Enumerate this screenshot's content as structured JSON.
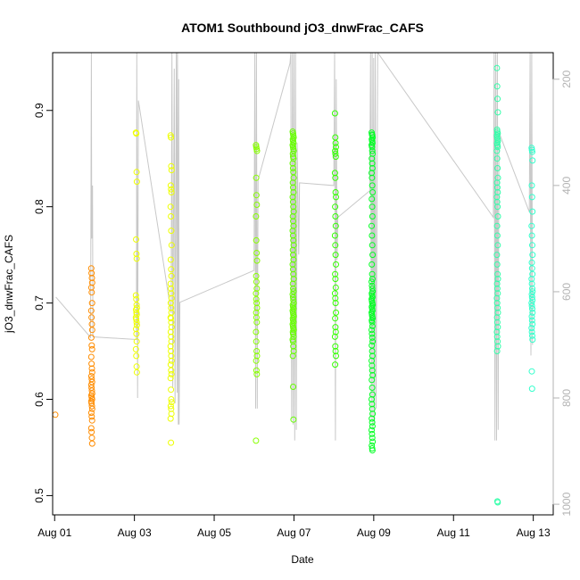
{
  "chart_data": {
    "type": "scatter",
    "title": "ATOM1 Southbound jO3_dnwFrac_CAFS",
    "xlabel": "Date",
    "ylabel": "jO3_dnwFrac_CAFS",
    "x_ticks": [
      "Aug 01",
      "Aug 03",
      "Aug 05",
      "Aug 07",
      "Aug 09",
      "Aug 11",
      "Aug 13"
    ],
    "x_tick_days": [
      1,
      3,
      5,
      7,
      9,
      11,
      13
    ],
    "xlim": [
      0.95,
      13.5
    ],
    "y_ticks": [
      "0.5",
      "0.6",
      "0.7",
      "0.8",
      "0.9"
    ],
    "y_tick_values": [
      0.5,
      0.6,
      0.7,
      0.8,
      0.9
    ],
    "ylim": [
      0.48,
      0.96
    ],
    "right_axis": {
      "ticks": [
        "200",
        "400",
        "600",
        "800",
        "1000"
      ],
      "tick_values": [
        200,
        400,
        600,
        800,
        1000
      ],
      "range": [
        150,
        1020
      ],
      "color": "#b3b3b3"
    },
    "grid": false,
    "colors": {
      "altitude_trace": "#c8c8c8",
      "points_start": "#ff8c00",
      "points_end": "#33ffcc"
    },
    "groups": [
      {
        "x": 1.03,
        "color": "#ff8c00",
        "y": [
          0.584
        ]
      },
      {
        "x": 1.93,
        "color": "#ff8c00",
        "y": [
          0.736,
          0.731,
          0.726,
          0.721,
          0.716,
          0.711,
          0.7,
          0.692,
          0.685,
          0.678,
          0.672,
          0.664,
          0.656,
          0.652,
          0.644,
          0.637,
          0.632,
          0.628,
          0.624,
          0.621,
          0.618,
          0.615,
          0.612,
          0.609,
          0.606,
          0.604,
          0.602,
          0.6,
          0.598,
          0.596,
          0.593,
          0.59,
          0.586,
          0.582,
          0.578,
          0.57,
          0.566,
          0.56,
          0.554
        ]
      },
      {
        "x": 3.05,
        "color": "#eeff00",
        "y": [
          0.877,
          0.876,
          0.836,
          0.826,
          0.766,
          0.751,
          0.746,
          0.708,
          0.704,
          0.698,
          0.695,
          0.693,
          0.69,
          0.688,
          0.685,
          0.683,
          0.68,
          0.677,
          0.673,
          0.668,
          0.66,
          0.652,
          0.645,
          0.634,
          0.628
        ]
      },
      {
        "x": 3.92,
        "color": "#eeff00",
        "y": [
          0.874,
          0.872,
          0.842,
          0.838,
          0.822,
          0.818,
          0.815,
          0.8,
          0.79,
          0.775,
          0.76,
          0.745,
          0.735,
          0.728,
          0.72,
          0.715,
          0.71,
          0.705,
          0.7,
          0.695,
          0.69,
          0.685,
          0.684,
          0.68,
          0.675,
          0.67,
          0.665,
          0.66,
          0.655,
          0.65,
          0.645,
          0.64,
          0.636,
          0.63,
          0.626,
          0.622,
          0.61,
          0.6,
          0.597,
          0.593,
          0.59,
          0.585,
          0.58,
          0.555
        ]
      },
      {
        "x": 6.06,
        "color": "#88ff00",
        "y": [
          0.864,
          0.862,
          0.86,
          0.858,
          0.83,
          0.812,
          0.802,
          0.79,
          0.765,
          0.752,
          0.744,
          0.728,
          0.722,
          0.715,
          0.71,
          0.704,
          0.7,
          0.695,
          0.69,
          0.685,
          0.68,
          0.67,
          0.66,
          0.65,
          0.645,
          0.64,
          0.63,
          0.626,
          0.557
        ]
      },
      {
        "x": 6.98,
        "color": "#66ff00",
        "y": [
          0.878,
          0.876,
          0.874,
          0.872,
          0.87,
          0.868,
          0.866,
          0.864,
          0.862,
          0.86,
          0.858,
          0.855,
          0.852,
          0.85,
          0.845,
          0.84,
          0.836,
          0.83,
          0.825,
          0.82,
          0.815,
          0.81,
          0.805,
          0.8,
          0.795,
          0.79,
          0.785,
          0.78,
          0.775,
          0.77,
          0.765,
          0.76,
          0.755,
          0.75,
          0.745,
          0.74,
          0.735,
          0.73,
          0.725,
          0.72,
          0.715,
          0.712,
          0.709,
          0.706,
          0.703,
          0.7,
          0.698,
          0.696,
          0.694,
          0.692,
          0.69,
          0.688,
          0.686,
          0.684,
          0.682,
          0.68,
          0.678,
          0.676,
          0.674,
          0.672,
          0.67,
          0.668,
          0.665,
          0.662,
          0.66,
          0.655,
          0.65,
          0.645,
          0.613,
          0.579
        ]
      },
      {
        "x": 8.04,
        "color": "#33ff00",
        "y": [
          0.897,
          0.872,
          0.866,
          0.862,
          0.858,
          0.855,
          0.852,
          0.835,
          0.83,
          0.815,
          0.81,
          0.8,
          0.79,
          0.78,
          0.77,
          0.76,
          0.75,
          0.74,
          0.73,
          0.725,
          0.716,
          0.71,
          0.705,
          0.7,
          0.69,
          0.684,
          0.675,
          0.67,
          0.665,
          0.655,
          0.65,
          0.645,
          0.636
        ]
      },
      {
        "x": 8.96,
        "color": "#00ff22",
        "y": [
          0.877,
          0.875,
          0.874,
          0.872,
          0.87,
          0.868,
          0.866,
          0.864,
          0.862,
          0.858,
          0.855,
          0.85,
          0.845,
          0.84,
          0.835,
          0.83,
          0.822,
          0.815,
          0.808,
          0.8,
          0.79,
          0.78,
          0.77,
          0.76,
          0.75,
          0.74,
          0.73,
          0.725,
          0.722,
          0.718,
          0.715,
          0.712,
          0.71,
          0.708,
          0.706,
          0.704,
          0.702,
          0.7,
          0.698,
          0.696,
          0.694,
          0.692,
          0.69,
          0.688,
          0.686,
          0.684,
          0.682,
          0.68,
          0.676,
          0.672,
          0.668,
          0.664,
          0.66,
          0.656,
          0.65,
          0.645,
          0.64,
          0.635,
          0.63,
          0.625,
          0.62,
          0.612,
          0.605,
          0.6,
          0.595,
          0.59,
          0.585,
          0.58,
          0.576,
          0.572,
          0.568,
          0.564,
          0.56,
          0.556,
          0.552,
          0.549,
          0.547
        ]
      },
      {
        "x": 12.1,
        "color": "#33ffaa",
        "y": [
          0.944,
          0.925,
          0.912,
          0.898,
          0.88,
          0.878,
          0.876,
          0.874,
          0.872,
          0.87,
          0.868,
          0.866,
          0.864,
          0.862,
          0.858,
          0.85,
          0.84,
          0.83,
          0.825,
          0.82,
          0.815,
          0.81,
          0.805,
          0.8,
          0.79,
          0.78,
          0.77,
          0.76,
          0.75,
          0.74,
          0.73,
          0.725,
          0.72,
          0.715,
          0.71,
          0.705,
          0.7,
          0.695,
          0.69,
          0.685,
          0.68,
          0.675,
          0.67,
          0.665,
          0.66,
          0.655,
          0.65,
          0.494,
          0.493
        ]
      },
      {
        "x": 12.97,
        "color": "#33ffcc",
        "y": [
          0.861,
          0.859,
          0.857,
          0.848,
          0.822,
          0.81,
          0.795,
          0.78,
          0.77,
          0.76,
          0.75,
          0.742,
          0.736,
          0.73,
          0.725,
          0.72,
          0.715,
          0.712,
          0.709,
          0.706,
          0.703,
          0.7,
          0.697,
          0.694,
          0.69,
          0.686,
          0.682,
          0.678,
          0.674,
          0.67,
          0.666,
          0.662,
          0.629,
          0.611
        ]
      }
    ],
    "altitude_trace_values": [
      [
        1.03,
        610
      ],
      [
        1.9,
        686
      ],
      [
        1.92,
        150
      ],
      [
        1.93,
        500
      ],
      [
        1.94,
        470
      ],
      [
        1.95,
        400
      ],
      [
        1.96,
        685
      ],
      [
        3.05,
        690
      ],
      [
        3.06,
        150
      ],
      [
        3.08,
        800
      ],
      [
        3.1,
        240
      ],
      [
        3.92,
        640
      ],
      [
        3.94,
        150
      ],
      [
        3.96,
        780
      ],
      [
        4.0,
        180
      ],
      [
        4.02,
        810
      ],
      [
        4.05,
        150
      ],
      [
        4.07,
        790
      ],
      [
        4.08,
        150
      ],
      [
        4.1,
        850
      ],
      [
        4.11,
        200
      ],
      [
        4.12,
        850
      ],
      [
        4.14,
        620
      ],
      [
        6.0,
        560
      ],
      [
        6.02,
        150
      ],
      [
        6.04,
        820
      ],
      [
        6.06,
        150
      ],
      [
        6.08,
        820
      ],
      [
        6.1,
        390
      ],
      [
        6.9,
        170
      ],
      [
        6.92,
        150
      ],
      [
        6.94,
        840
      ],
      [
        6.96,
        150
      ],
      [
        6.98,
        850
      ],
      [
        7.0,
        150
      ],
      [
        7.02,
        880
      ],
      [
        7.04,
        150
      ],
      [
        7.06,
        860
      ],
      [
        7.08,
        320
      ],
      [
        7.12,
        530
      ],
      [
        7.14,
        395
      ],
      [
        8.0,
        400
      ],
      [
        8.02,
        150
      ],
      [
        8.04,
        880
      ],
      [
        8.06,
        200
      ],
      [
        8.08,
        540
      ],
      [
        8.1,
        460
      ],
      [
        8.9,
        410
      ],
      [
        8.92,
        150
      ],
      [
        8.94,
        840
      ],
      [
        8.96,
        150
      ],
      [
        8.98,
        860
      ],
      [
        9.0,
        160
      ],
      [
        9.02,
        850
      ],
      [
        9.04,
        150
      ],
      [
        9.06,
        820
      ],
      [
        9.1,
        150
      ],
      [
        12.0,
        460
      ],
      [
        12.02,
        150
      ],
      [
        12.04,
        880
      ],
      [
        12.06,
        150
      ],
      [
        12.08,
        880
      ],
      [
        12.1,
        150
      ],
      [
        12.12,
        860
      ],
      [
        12.14,
        300
      ],
      [
        12.9,
        450
      ],
      [
        12.92,
        150
      ],
      [
        12.94,
        720
      ],
      [
        12.96,
        150
      ],
      [
        12.98,
        700
      ]
    ]
  }
}
